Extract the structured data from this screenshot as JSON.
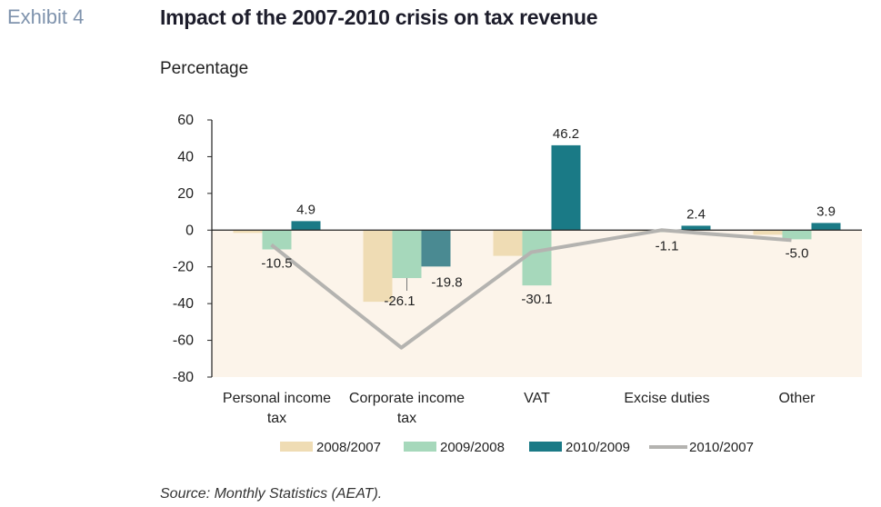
{
  "header": {
    "exhibit": "Exhibit 4",
    "title": "Impact of the 2007-2010 crisis on tax revenue",
    "subtitle": "Percentage"
  },
  "footer": {
    "source": "Source: Monthly Statistics (AEAT)."
  },
  "colors": {
    "s2008": "#efdcb4",
    "s2009": "#a6d8bb",
    "s2010": "#1a7a86",
    "s2010_corporate": "#4a8a92",
    "line": "#b4b3b0",
    "negative_area": "#fcf4ea",
    "axis": "#222222"
  },
  "chart_data": {
    "type": "bar",
    "categories": [
      [
        "Personal income",
        "tax"
      ],
      [
        "Corporate income",
        "tax"
      ],
      [
        "VAT"
      ],
      [
        "Excise duties"
      ],
      [
        "Other"
      ]
    ],
    "series": [
      {
        "name": "2008/2007",
        "kind": "bar",
        "values": [
          -1.5,
          -39.0,
          -14.0,
          -0.4,
          -2.5
        ]
      },
      {
        "name": "2009/2008",
        "kind": "bar",
        "values": [
          -10.5,
          -26.1,
          -30.1,
          -1.1,
          -5.0
        ]
      },
      {
        "name": "2010/2009",
        "kind": "bar",
        "values": [
          4.9,
          -19.8,
          46.2,
          2.4,
          3.9
        ]
      },
      {
        "name": "2010/2007",
        "kind": "line",
        "values": [
          -8.0,
          -64.0,
          -12.0,
          0.0,
          -5.5
        ]
      }
    ],
    "data_labels": [
      {
        "series": "2009/2008",
        "category_index": 0,
        "text": "-10.5"
      },
      {
        "series": "2010/2009",
        "category_index": 0,
        "text": "4.9"
      },
      {
        "series": "2009/2008",
        "category_index": 1,
        "text": "-26.1"
      },
      {
        "series": "2010/2009",
        "category_index": 1,
        "text": "-19.8"
      },
      {
        "series": "2009/2008",
        "category_index": 2,
        "text": "-30.1"
      },
      {
        "series": "2010/2009",
        "category_index": 2,
        "text": "46.2"
      },
      {
        "series": "2009/2008",
        "category_index": 3,
        "text": "-1.1"
      },
      {
        "series": "2010/2009",
        "category_index": 3,
        "text": "2.4"
      },
      {
        "series": "2009/2008",
        "category_index": 4,
        "text": "-5.0"
      },
      {
        "series": "2010/2009",
        "category_index": 4,
        "text": "3.9"
      }
    ],
    "ylim": [
      -80,
      60
    ],
    "yticks": [
      "60",
      "40",
      "20",
      "0",
      "-20",
      "-40",
      "-60",
      "-80"
    ],
    "ytick_values": [
      60,
      40,
      20,
      0,
      -20,
      -40,
      -60,
      -80
    ],
    "grid": false,
    "negative_region_shaded": true,
    "legend_position": "bottom"
  }
}
